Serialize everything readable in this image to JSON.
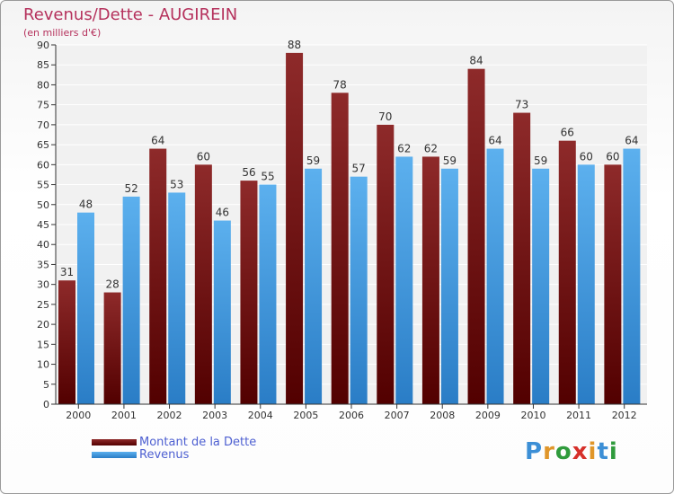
{
  "chart_data": {
    "type": "bar",
    "title": "Revenus/Dette - AUGIREIN",
    "subtitle": "(en milliers d'€)",
    "categories": [
      "2000",
      "2001",
      "2002",
      "2003",
      "2004",
      "2005",
      "2006",
      "2007",
      "2008",
      "2009",
      "2010",
      "2011",
      "2012"
    ],
    "series": [
      {
        "name": "Montant de la Dette",
        "values": [
          31,
          28,
          64,
          60,
          56,
          88,
          78,
          70,
          62,
          84,
          73,
          66,
          60
        ],
        "color": "#6b0a0a"
      },
      {
        "name": "Revenus",
        "values": [
          48,
          52,
          53,
          46,
          55,
          59,
          57,
          62,
          59,
          64,
          59,
          60,
          64
        ],
        "color": "#3a8fd9"
      }
    ],
    "ylim": [
      0,
      90
    ],
    "yticks": [
      0,
      5,
      10,
      15,
      20,
      25,
      30,
      35,
      40,
      45,
      50,
      55,
      60,
      65,
      70,
      75,
      80,
      85,
      90
    ],
    "grid": true,
    "legend_position": "bottom-left"
  },
  "logo": {
    "letters": [
      "P",
      "r",
      "o",
      "x",
      "i",
      "t",
      "i"
    ],
    "colors": [
      "#3c8fd6",
      "#e0962a",
      "#2f9b3c",
      "#d6302a",
      "#e0962a",
      "#3c8fd6",
      "#2f9b3c"
    ]
  }
}
